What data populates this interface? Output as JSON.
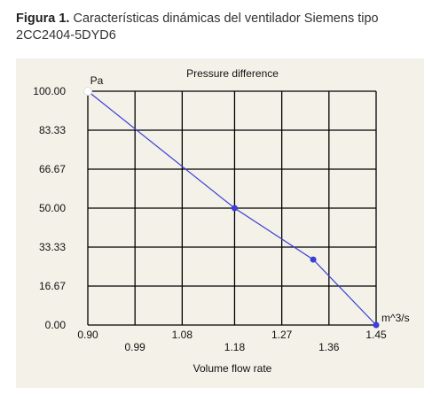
{
  "caption": {
    "label": "Figura 1.",
    "text": "Características dinámicas del ventilador Siemens tipo 2CC2404-5DYD6"
  },
  "colors": {
    "line": "#3a3fd6",
    "grid": "#000000",
    "panel": "#f3f1e8"
  },
  "chart_data": {
    "type": "line",
    "title": "Pressure difference",
    "xlabel": "Volume flow rate",
    "ylabel": "",
    "y_unit": "Pa",
    "x_unit": "m^3/s",
    "xlim": [
      0.9,
      1.45
    ],
    "ylim": [
      0.0,
      100.0
    ],
    "x_ticks": [
      "0.90",
      "0.99",
      "1.08",
      "1.18",
      "1.27",
      "1.36",
      "1.45"
    ],
    "x_tick_values": [
      0.9,
      0.99,
      1.08,
      1.18,
      1.27,
      1.36,
      1.45
    ],
    "y_ticks": [
      "100.00",
      "83.33",
      "66.67",
      "50.00",
      "33.33",
      "16.67",
      "0.00"
    ],
    "y_tick_values": [
      100.0,
      83.33,
      66.67,
      50.0,
      33.33,
      16.67,
      0.0
    ],
    "grid": true,
    "series": [
      {
        "x": [
          0.9,
          1.18,
          1.33,
          1.45
        ],
        "y": [
          100.0,
          50.0,
          28.0,
          0.0
        ]
      }
    ]
  }
}
